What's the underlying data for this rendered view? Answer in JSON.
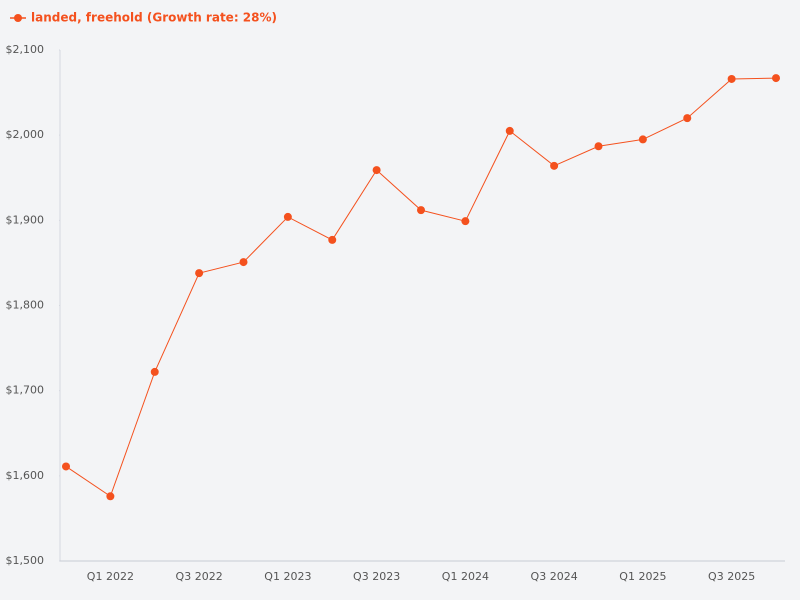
{
  "chart_data": {
    "type": "line",
    "categories": [
      null,
      "Q1 2022",
      null,
      "Q3 2022",
      null,
      "Q1 2023",
      null,
      "Q3 2023",
      null,
      "Q1 2024",
      null,
      "Q3 2024",
      null,
      "Q1 2025",
      null,
      "Q3 2025",
      null
    ],
    "series": [
      {
        "name": "landed, freehold (Growth rate: 28%)",
        "color": "#f4511e",
        "values": [
          1611,
          1576,
          1722,
          1838,
          1851,
          1904,
          1877,
          1959,
          1912,
          1899,
          2005,
          1964,
          1987,
          1995,
          2020,
          2066,
          2067
        ]
      }
    ],
    "ylim": [
      1500,
      2100
    ],
    "yticks": [
      {
        "value": 1500,
        "label": "$1,500"
      },
      {
        "value": 1600,
        "label": "$1,600"
      },
      {
        "value": 1700,
        "label": "$1,700"
      },
      {
        "value": 1800,
        "label": "$1,800"
      },
      {
        "value": 1900,
        "label": "$1,900"
      },
      {
        "value": 2000,
        "label": "$2,000"
      },
      {
        "value": 2100,
        "label": "$2,100"
      }
    ],
    "grid": false,
    "legend": "top-left"
  }
}
